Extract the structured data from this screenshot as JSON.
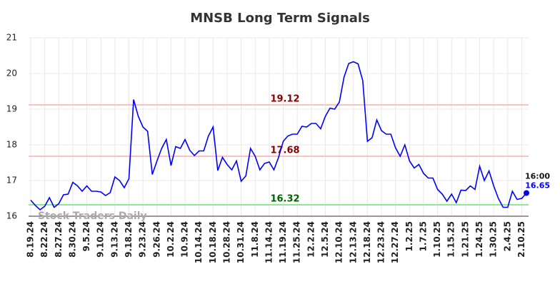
{
  "chart_data": {
    "type": "line",
    "title": "MNSB Long Term Signals",
    "categories": [
      "8.19.24",
      null,
      null,
      "8.22.24",
      null,
      null,
      "8.27.24",
      null,
      null,
      "8.30.24",
      null,
      null,
      "9.5.24",
      null,
      null,
      "9.10.24",
      null,
      null,
      "9.13.24",
      null,
      null,
      "9.18.24",
      null,
      null,
      "9.23.24",
      null,
      null,
      "9.26.24",
      null,
      null,
      "10.2.24",
      null,
      null,
      "10.9.24",
      null,
      null,
      "10.14.24",
      null,
      null,
      "10.18.24",
      null,
      null,
      "10.28.24",
      null,
      null,
      "10.31.24",
      null,
      null,
      "11.8.24",
      null,
      null,
      "11.14.24",
      null,
      null,
      "11.19.24",
      null,
      null,
      "11.25.24",
      null,
      null,
      "12.2.24",
      null,
      null,
      "12.5.24",
      null,
      null,
      "12.10.24",
      null,
      null,
      "12.13.24",
      null,
      null,
      "12.18.24",
      null,
      null,
      "12.23.24",
      null,
      null,
      "12.27.24",
      null,
      null,
      "1.2.25",
      null,
      null,
      "1.7.25",
      null,
      null,
      "1.10.25",
      null,
      null,
      "1.15.25",
      null,
      null,
      "1.21.25",
      null,
      null,
      "1.24.25",
      null,
      null,
      "1.30.25",
      null,
      null,
      "2.4.25",
      null,
      null,
      "2.10.25",
      null
    ],
    "values": [
      16.45,
      16.3,
      16.18,
      16.28,
      16.52,
      16.25,
      16.35,
      16.6,
      16.62,
      16.95,
      16.85,
      16.7,
      16.85,
      16.7,
      16.7,
      16.68,
      16.58,
      16.66,
      17.1,
      17.0,
      16.8,
      17.05,
      19.27,
      18.8,
      18.5,
      18.38,
      17.17,
      17.55,
      17.9,
      18.15,
      17.42,
      17.95,
      17.9,
      18.15,
      17.85,
      17.7,
      17.83,
      17.83,
      18.25,
      18.5,
      17.28,
      17.65,
      17.45,
      17.3,
      17.55,
      16.98,
      17.13,
      17.9,
      17.68,
      17.3,
      17.48,
      17.52,
      17.3,
      17.65,
      18.1,
      18.25,
      18.3,
      18.3,
      18.52,
      18.5,
      18.6,
      18.6,
      18.45,
      18.8,
      19.03,
      19.0,
      19.2,
      19.9,
      20.28,
      20.33,
      20.27,
      19.8,
      18.1,
      18.2,
      18.7,
      18.4,
      18.3,
      18.3,
      17.92,
      17.68,
      18.0,
      17.55,
      17.35,
      17.45,
      17.2,
      17.07,
      17.07,
      16.75,
      16.62,
      16.42,
      16.62,
      16.38,
      16.73,
      16.72,
      16.85,
      16.75,
      17.4,
      17.0,
      17.27,
      16.85,
      16.5,
      16.25,
      16.25,
      16.7,
      16.47,
      16.5,
      16.65
    ],
    "color": "#0000ff",
    "ylim": [
      16,
      21
    ],
    "yticks": [
      16,
      17,
      18,
      19,
      20,
      21
    ],
    "grid": true,
    "reference_lines": [
      {
        "value": 19.12,
        "color": "#ffc0c0",
        "label_color": "#8b0000"
      },
      {
        "value": 17.68,
        "color": "#ffc0c0",
        "label_color": "#8b0000"
      },
      {
        "value": 16.32,
        "color": "#90e890",
        "label_color": "#006400"
      }
    ],
    "end_time_label": "16:00",
    "watermark": "Stock Traders Daily"
  }
}
